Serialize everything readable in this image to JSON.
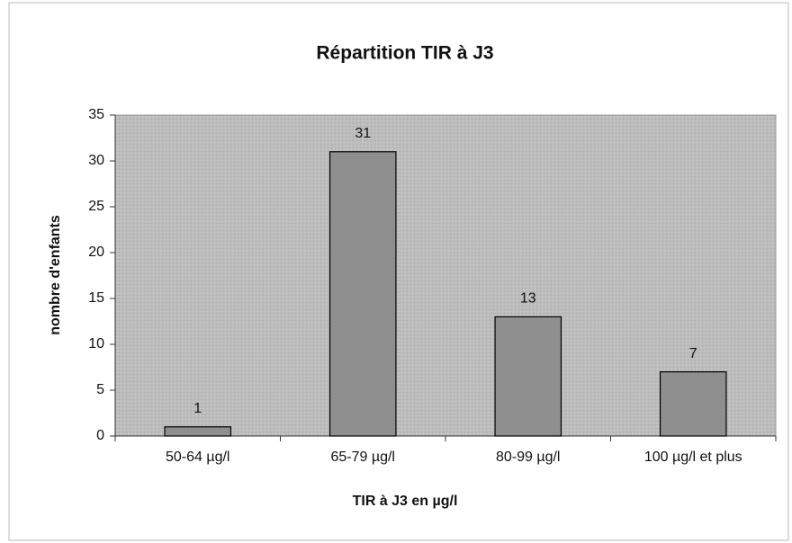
{
  "chart_data": {
    "type": "bar",
    "title": "Répartition TIR à J3",
    "x_label": "TIR à J3 en µg/l",
    "y_label": "nombre d'enfants",
    "categories": [
      "50-64 µg/l",
      "65-79 µg/l",
      "80-99 µg/l",
      "100 µg/l  et plus"
    ],
    "values": [
      1,
      31,
      13,
      7
    ],
    "color": "#8f8f8f",
    "ylim": [
      0,
      35
    ],
    "yticks": [
      0,
      5,
      10,
      15,
      20,
      25,
      30,
      35
    ],
    "grid": false,
    "data_labels": true
  }
}
